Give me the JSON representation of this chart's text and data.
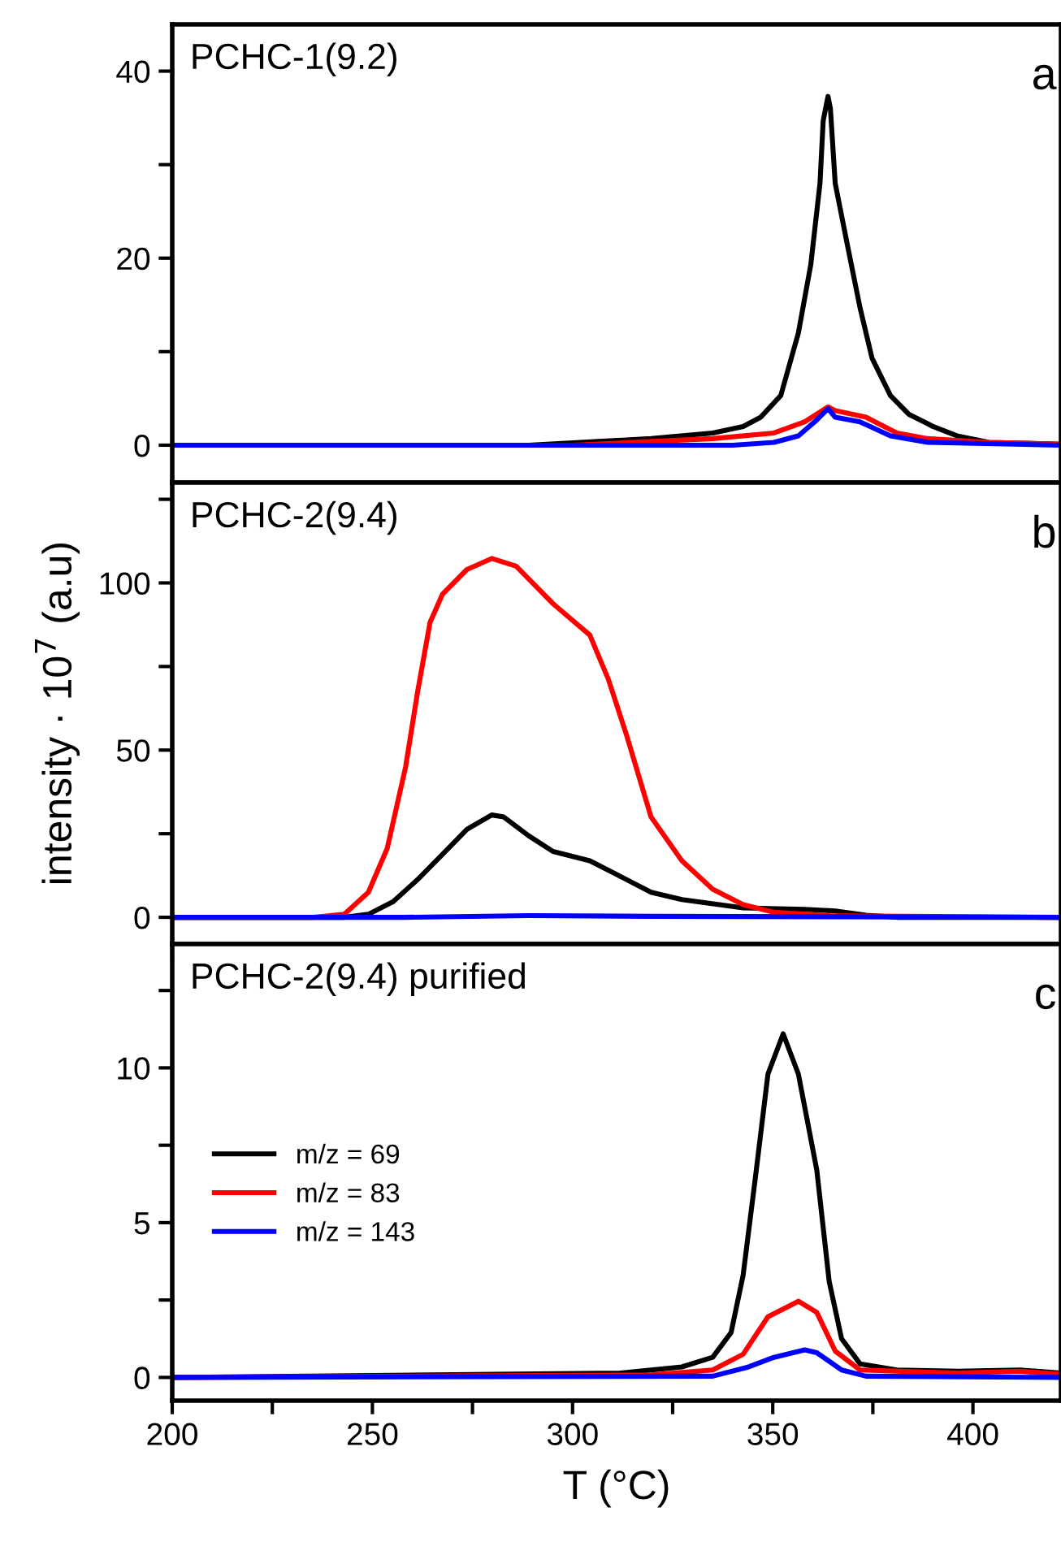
{
  "chart_data": [
    {
      "type": "line",
      "annotations": [
        "PCHC-1(9.2)",
        "a"
      ],
      "xlim": [
        200,
        422
      ],
      "ylim": [
        -4,
        45
      ],
      "xticks": [
        {
          "value": 200,
          "label": null
        },
        {
          "value": 225,
          "label": null
        },
        {
          "value": 250,
          "label": null
        },
        {
          "value": 275,
          "label": null
        },
        {
          "value": 300,
          "label": null
        },
        {
          "value": 325,
          "label": null
        },
        {
          "value": 350,
          "label": null
        },
        {
          "value": 375,
          "label": null
        },
        {
          "value": 400,
          "label": null
        }
      ],
      "yticks": [
        0,
        {
          "value": 10,
          "label": null
        },
        20,
        {
          "value": 30,
          "label": null
        },
        40
      ],
      "tick_labels": "y",
      "grid": false,
      "legend": false,
      "series": [
        {
          "color": "#000000",
          "x": [
            200,
            289,
            319.6,
            335,
            342.6,
            347,
            352,
            356.4,
            359.5,
            361.8,
            362.6,
            363.8,
            364.4,
            365.6,
            368.7,
            371.8,
            374.8,
            379.4,
            384,
            388.7,
            390,
            396,
            404,
            422
          ],
          "values": [
            0,
            0,
            0.7,
            1.3,
            2,
            3,
            5.3,
            12,
            19.3,
            28,
            34.7,
            37.3,
            36,
            28,
            21.3,
            14.7,
            9.3,
            5.3,
            3.3,
            2.3,
            2,
            1,
            0.3,
            0.1
          ]
        },
        {
          "color": "#ff0000",
          "x": [
            200,
            300,
            335,
            350.3,
            358,
            363.8,
            365.6,
            373.3,
            381,
            388.7,
            404,
            422
          ],
          "values": [
            0,
            0,
            0.7,
            1.3,
            2.5,
            4.1,
            3.7,
            3,
            1.3,
            0.7,
            0.3,
            0.1
          ]
        },
        {
          "color": "#0000ff",
          "x": [
            200,
            340,
            350.3,
            356.4,
            361,
            363.8,
            365.6,
            371.8,
            379.4,
            388.7,
            422
          ],
          "values": [
            0,
            0,
            0.3,
            1,
            2.7,
            3.9,
            3,
            2.5,
            1,
            0.3,
            0
          ]
        }
      ]
    },
    {
      "type": "line",
      "annotations": [
        "PCHC-2(9.4)",
        "b"
      ],
      "ylabel": "intensity · 10$^{7}$ (a.u)",
      "xlim": [
        200,
        422
      ],
      "ylim": [
        -8,
        130
      ],
      "xticks": [
        {
          "value": 200,
          "label": null
        },
        {
          "value": 225,
          "label": null
        },
        {
          "value": 250,
          "label": null
        },
        {
          "value": 275,
          "label": null
        },
        {
          "value": 300,
          "label": null
        },
        {
          "value": 325,
          "label": null
        },
        {
          "value": 350,
          "label": null
        },
        {
          "value": 375,
          "label": null
        },
        {
          "value": 400,
          "label": null
        }
      ],
      "yticks": [
        0,
        {
          "value": 25,
          "label": null
        },
        50,
        {
          "value": 75,
          "label": null
        },
        100,
        {
          "value": 125,
          "label": null
        }
      ],
      "tick_labels": "y",
      "grid": false,
      "legend": false,
      "series": [
        {
          "color": "#000000",
          "x": [
            200,
            243,
            249,
            255.2,
            261.3,
            267.5,
            273.6,
            279.8,
            282.8,
            289,
            295.1,
            304.3,
            312,
            319.6,
            327.3,
            342.6,
            357.9,
            365.6,
            373.3,
            381,
            422
          ],
          "values": [
            0,
            0,
            0.9,
            4.7,
            11.3,
            18.8,
            26.3,
            30.6,
            30,
            24.4,
            19.7,
            16.9,
            12.2,
            7.5,
            5.3,
            2.8,
            2.4,
            1.9,
            0.6,
            0,
            0
          ]
        },
        {
          "color": "#ff0000",
          "x": [
            200,
            235.3,
            243,
            249,
            253.7,
            258.3,
            261.3,
            264.4,
            267.5,
            273.6,
            279.8,
            285.9,
            290.5,
            295.1,
            304.3,
            308.9,
            313.5,
            319.6,
            327.3,
            335,
            342.6,
            350.3,
            365.6,
            422
          ],
          "values": [
            0,
            0,
            0.9,
            7.5,
            20.6,
            45,
            67.5,
            88.2,
            96.6,
            104,
            107.3,
            105,
            99.4,
            93.8,
            84.4,
            71.3,
            54.4,
            30,
            16.9,
            8.4,
            3.8,
            1.5,
            0.4,
            0
          ]
        },
        {
          "color": "#0000ff",
          "x": [
            200,
            258,
            289,
            320,
            422
          ],
          "values": [
            0,
            0,
            0.5,
            0.3,
            0
          ]
        }
      ]
    },
    {
      "type": "line",
      "annotations": [
        "PCHC-2(9.4) purified",
        "c"
      ],
      "xlabel": "T (°C)",
      "xlim": [
        200,
        422
      ],
      "ylim": [
        -0.75,
        14
      ],
      "xticks": [
        200,
        {
          "value": 225,
          "label": null
        },
        250,
        {
          "value": 275,
          "label": null
        },
        300,
        {
          "value": 325,
          "label": null
        },
        350,
        {
          "value": 375,
          "label": null
        },
        400
      ],
      "yticks": [
        0,
        {
          "value": 2.5,
          "label": null
        },
        5,
        {
          "value": 7.5,
          "label": null
        },
        10,
        {
          "value": 12.5,
          "label": null
        }
      ],
      "grid": false,
      "legend": "left",
      "series": [
        {
          "name": "m/z = 69",
          "color": "#000000",
          "x": [
            200,
            312,
            327.3,
            335,
            339.6,
            342.6,
            345.7,
            348.8,
            352.6,
            356.4,
            361,
            364.1,
            367.2,
            371.8,
            381,
            396.3,
            411.7,
            422
          ],
          "values": [
            0,
            0.14,
            0.34,
            0.65,
            1.45,
            3.3,
            6.5,
            9.8,
            11.1,
            9.8,
            6.7,
            3.1,
            1.25,
            0.44,
            0.24,
            0.2,
            0.24,
            0.14
          ]
        },
        {
          "name": "m/z = 83",
          "color": "#ff0000",
          "x": [
            200,
            319.6,
            335,
            342.6,
            348.8,
            356.4,
            361,
            365.6,
            371.8,
            396.3,
            411.7,
            422
          ],
          "values": [
            0,
            0.08,
            0.24,
            0.75,
            1.96,
            2.46,
            2.1,
            0.85,
            0.24,
            0.14,
            0.2,
            0.1
          ]
        },
        {
          "name": "m/z = 143",
          "color": "#0000ff",
          "x": [
            200,
            335,
            344,
            350.3,
            358,
            361,
            367.2,
            373.3,
            422
          ],
          "values": [
            0,
            0.04,
            0.34,
            0.65,
            0.89,
            0.8,
            0.24,
            0.04,
            0
          ]
        }
      ]
    }
  ]
}
